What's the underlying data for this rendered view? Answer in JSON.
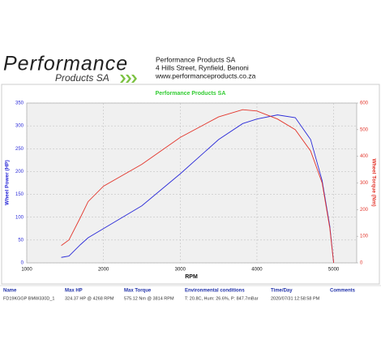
{
  "header": {
    "logo_main": "Performance",
    "logo_sub": "Products SA",
    "lines": [
      "Performance Products SA",
      "4 Hills Street, Rynfield, Benoni",
      "www.performanceproducts.co.za"
    ]
  },
  "chart_data": {
    "type": "line",
    "title": "Performance Products SA",
    "x_label": "RPM",
    "y_label": "Wheel Power (HP)",
    "y2_label": "Wheel Torque (Nm)",
    "x": [
      1450,
      1550,
      1700,
      1800,
      2000,
      2500,
      3000,
      3500,
      3814,
      4000,
      4268,
      4500,
      4700,
      4850,
      4950,
      5000
    ],
    "series": [
      {
        "name": "Wheel Power (HP)",
        "color": "#2a2ad8",
        "values": [
          12,
          15,
          40,
          55,
          75,
          125,
          195,
          270,
          305,
          315,
          324,
          318,
          270,
          180,
          80,
          0
        ]
      },
      {
        "name": "Wheel Torque (Nm)",
        "color": "#e3352b",
        "axis": "y2",
        "values": [
          65,
          86,
          171,
          230,
          288,
          370,
          471,
          548,
          575,
          570,
          540,
          500,
          420,
          300,
          130,
          0
        ]
      }
    ],
    "xlim": [
      1000,
      5300
    ],
    "xticks": [
      1000,
      2000,
      3000,
      4000,
      5000
    ],
    "ylim": [
      0,
      350
    ],
    "yticks": [
      0,
      50,
      100,
      150,
      200,
      250,
      300,
      350
    ],
    "y2lim": [
      0,
      600
    ],
    "y2ticks": [
      0,
      100,
      200,
      300,
      400,
      500,
      600
    ],
    "grid": true
  },
  "table": {
    "columns": [
      "Name",
      "Max HP",
      "Max Torque",
      "Environmental conditions",
      "Time/Day",
      "Comments"
    ],
    "rows": [
      [
        "FD19KGGP BMW330D_1",
        "324.37 HP @ 4268 RPM",
        "575.12 Nm @ 3814 RPM",
        "T: 20.8C, Hum: 26.6%, P: 847.7mBar",
        "2020/07/31 12:58:58 PM"
      ]
    ]
  }
}
